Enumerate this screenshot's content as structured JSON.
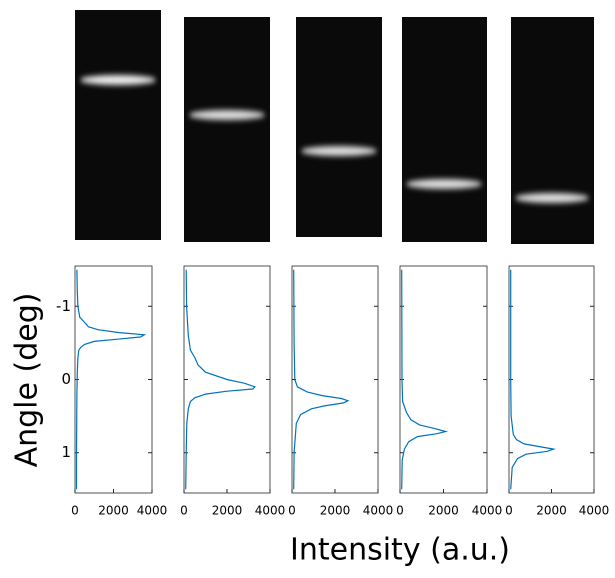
{
  "chart_data": [
    {
      "type": "line",
      "ylabel": "Angle (deg)",
      "x": [
        -1.5,
        -1.2,
        -1.0,
        -0.85,
        -0.78,
        -0.72,
        -0.68,
        -0.64,
        -0.61,
        -0.58,
        -0.55,
        -0.52,
        -0.48,
        -0.44,
        -0.4,
        -0.3,
        -0.1,
        0.2,
        0.6,
        1.0,
        1.5
      ],
      "values": [
        100,
        120,
        150,
        250,
        500,
        700,
        1200,
        2300,
        3600,
        3400,
        2200,
        1000,
        500,
        300,
        200,
        150,
        120,
        100,
        90,
        80,
        80
      ],
      "color": "#0072bd",
      "xlim": [
        -1.55,
        1.55
      ],
      "xticks": [
        -1,
        0,
        1
      ],
      "ylim": [
        0,
        4000
      ],
      "yticks": [
        0,
        2000,
        4000
      ]
    },
    {
      "type": "line",
      "x": [
        -1.5,
        -1,
        -0.6,
        -0.4,
        -0.3,
        -0.2,
        -0.1,
        0,
        0.05,
        0.1,
        0.13,
        0.16,
        0.2,
        0.25,
        0.3,
        0.4,
        0.6,
        1.0,
        1.5
      ],
      "values": [
        100,
        120,
        200,
        300,
        500,
        650,
        1000,
        2000,
        2800,
        3300,
        3200,
        2000,
        1000,
        500,
        300,
        200,
        130,
        100,
        80
      ],
      "color": "#0072bd",
      "xlim": [
        -1.55,
        1.55
      ],
      "xticks": [
        -1,
        0,
        1
      ],
      "ylim": [
        0,
        4000
      ],
      "yticks": [
        0,
        2000,
        4000
      ]
    },
    {
      "type": "line",
      "xlabel": "Intensity (a.u.)",
      "x": [
        -1.5,
        -0.5,
        0,
        0.1,
        0.17,
        0.22,
        0.26,
        0.29,
        0.32,
        0.36,
        0.4,
        0.48,
        0.6,
        1,
        1.5
      ],
      "values": [
        80,
        100,
        130,
        250,
        700,
        1400,
        2300,
        2600,
        2400,
        1500,
        900,
        400,
        200,
        100,
        80
      ],
      "color": "#0072bd",
      "xlim": [
        -1.55,
        1.55
      ],
      "xticks": [
        -1,
        0,
        1
      ],
      "ylim": [
        0,
        4000
      ],
      "yticks": [
        0,
        2000,
        4000
      ]
    },
    {
      "type": "line",
      "x": [
        -1.5,
        0,
        0.3,
        0.45,
        0.55,
        0.62,
        0.67,
        0.71,
        0.74,
        0.78,
        0.85,
        0.95,
        1.1,
        1.5
      ],
      "values": [
        80,
        90,
        120,
        300,
        500,
        900,
        1600,
        2100,
        1700,
        800,
        400,
        200,
        100,
        80
      ],
      "color": "#0072bd",
      "xlim": [
        -1.55,
        1.55
      ],
      "xticks": [
        -1,
        0,
        1
      ],
      "ylim": [
        0,
        4000
      ],
      "yticks": [
        0,
        2000,
        4000
      ]
    },
    {
      "type": "line",
      "x": [
        -1.5,
        0,
        0.5,
        0.75,
        0.82,
        0.88,
        0.92,
        0.95,
        0.98,
        1.02,
        1.08,
        1.2,
        1.5
      ],
      "values": [
        80,
        80,
        100,
        200,
        350,
        700,
        1500,
        2100,
        1800,
        800,
        400,
        150,
        80
      ],
      "color": "#0072bd",
      "xlim": [
        -1.55,
        1.55
      ],
      "xticks": [
        -1,
        0,
        1
      ],
      "ylim": [
        0,
        4000
      ],
      "yticks": [
        0,
        2000,
        4000
      ]
    }
  ]
}
